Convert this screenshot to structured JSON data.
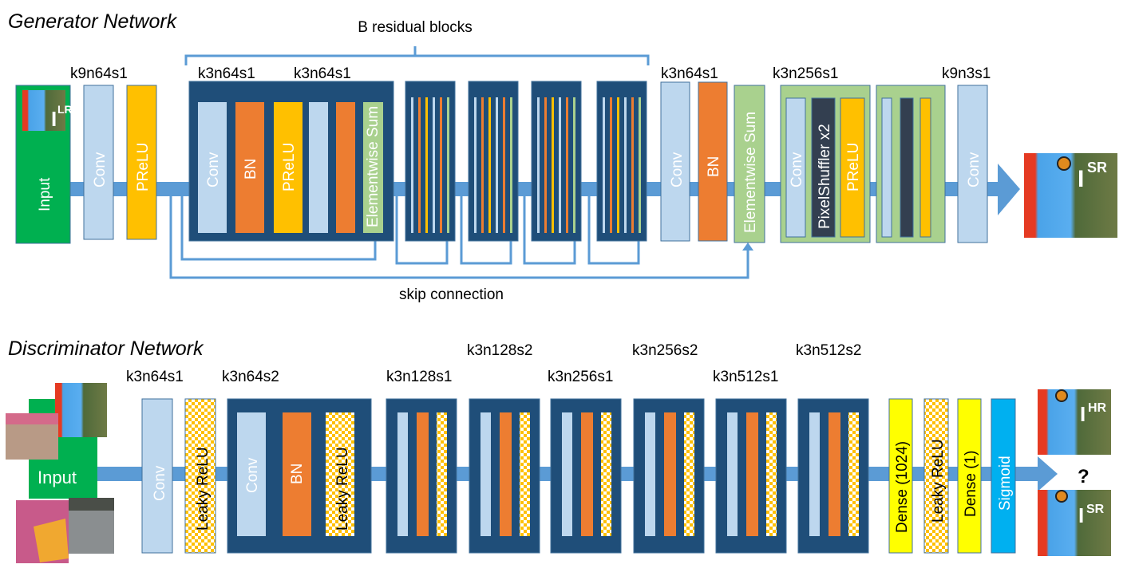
{
  "generator": {
    "title": "Generator Network",
    "residual_label": "B residual blocks",
    "skip_label": "skip connection",
    "input_label": "Input",
    "input_image_label": "I",
    "input_image_sup": "LR",
    "output_image_label": "I",
    "output_image_sup": "SR",
    "layer_labels": [
      "k9n64s1",
      "k3n64s1",
      "k3n64s1",
      "k3n64s1",
      "k3n256s1",
      "k9n3s1"
    ],
    "layers": {
      "conv": "Conv",
      "prelu": "PReLU",
      "bn": "BN",
      "sum": "Elementwise Sum",
      "pixelshuffler": "PixelShuffler x2"
    }
  },
  "discriminator": {
    "title": "Discriminator Network",
    "input_label": "Input",
    "hr_label": "I",
    "hr_sup": "HR",
    "sr_label": "I",
    "sr_sup": "SR",
    "question": "?",
    "layer_labels": [
      "k3n64s1",
      "k3n64s2",
      "k3n128s1",
      "k3n128s2",
      "k3n256s1",
      "k3n256s2",
      "k3n512s1",
      "k3n512s2"
    ],
    "layers": {
      "conv": "Conv",
      "leaky": "Leaky ReLU",
      "bn": "BN",
      "dense1024": "Dense (1024)",
      "dense1": "Dense (1)",
      "sigmoid": "Sigmoid"
    }
  },
  "colors": {
    "conv": "#BDD7EE",
    "bn": "#ED7D31",
    "prelu": "#FFC000",
    "sum": "#A9D18E",
    "block": "#1F4E79",
    "pixelshuffler": "#333F50",
    "input": "#00B050",
    "arrow": "#5B9BD5",
    "dense": "#FFFF00",
    "sigmoid": "#00B0F0"
  }
}
